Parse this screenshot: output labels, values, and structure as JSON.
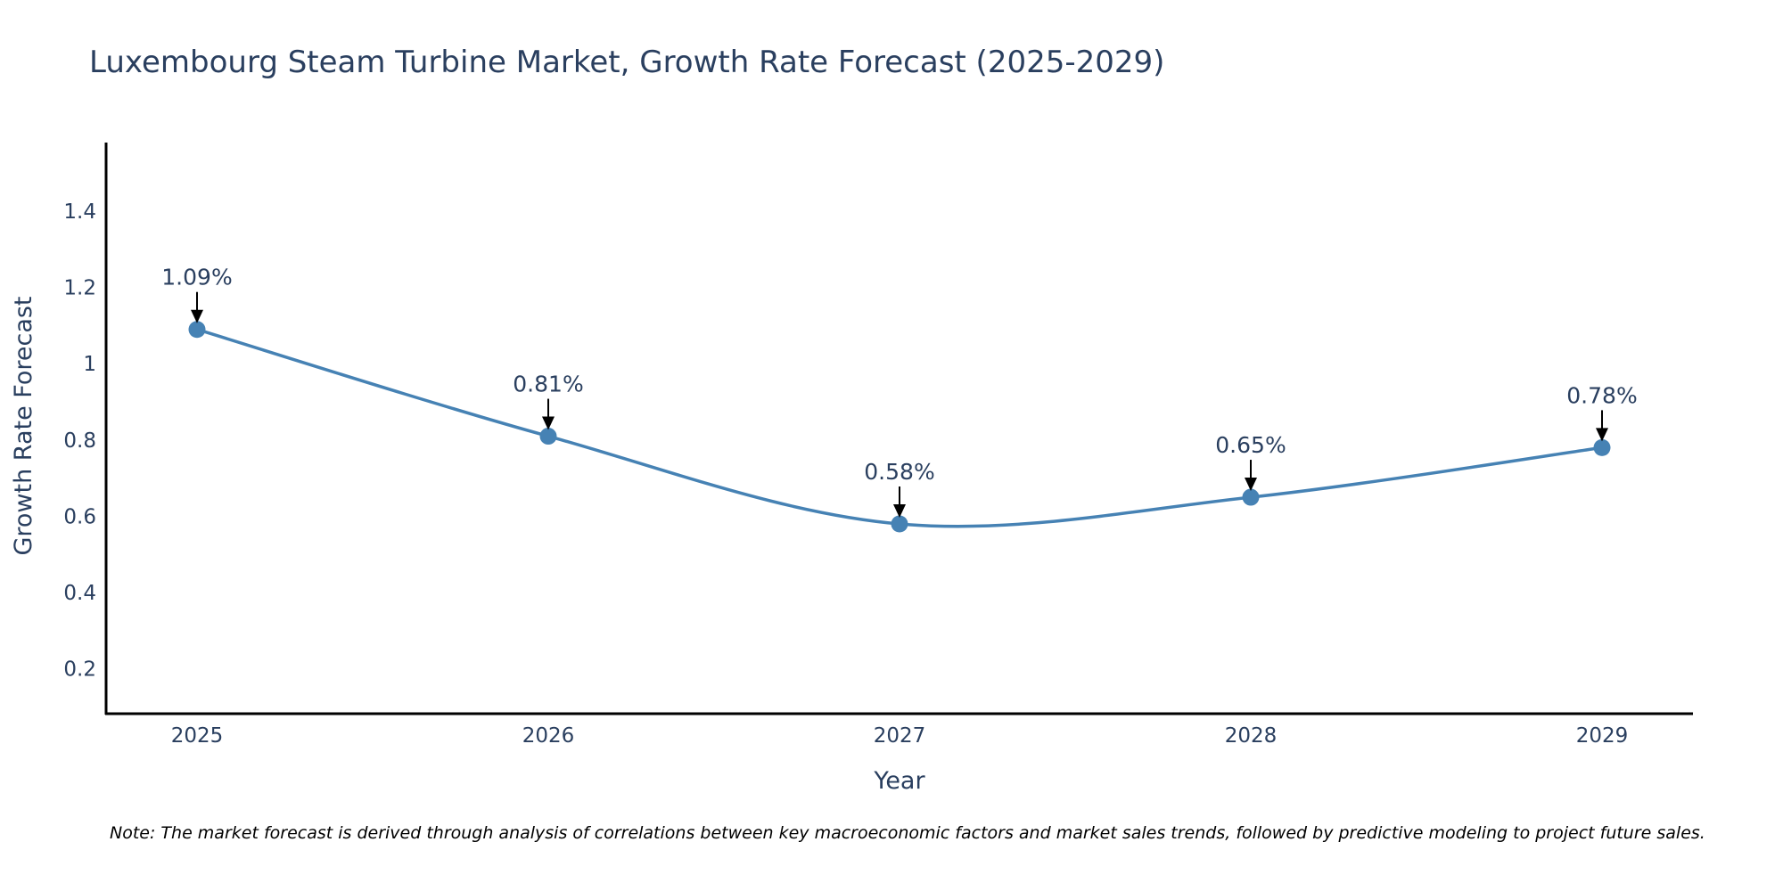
{
  "chart_data": {
    "type": "line",
    "title": "Luxembourg Steam Turbine Market, Growth Rate Forecast (2025-2029)",
    "xlabel": "Year",
    "ylabel": "Growth Rate Forecast",
    "categories": [
      "2025",
      "2026",
      "2027",
      "2028",
      "2029"
    ],
    "values": [
      1.09,
      0.81,
      0.58,
      0.65,
      0.78
    ],
    "data_labels": [
      "1.09%",
      "0.81%",
      "0.58%",
      "0.65%",
      "0.78%"
    ],
    "ylim": [
      0.08,
      1.58
    ],
    "yticks": [
      0.2,
      0.4,
      0.6,
      0.8,
      1,
      1.2,
      1.4
    ],
    "ytick_labels": [
      "0.2",
      "0.4",
      "0.6",
      "0.8",
      "1",
      "1.2",
      "1.4"
    ],
    "grid": false,
    "line_shape": "spline",
    "series_color": "#4682b4",
    "note": "Note: The market forecast is derived through analysis of correlations between key macroeconomic factors and market sales trends, followed by predictive modeling to project future sales."
  }
}
